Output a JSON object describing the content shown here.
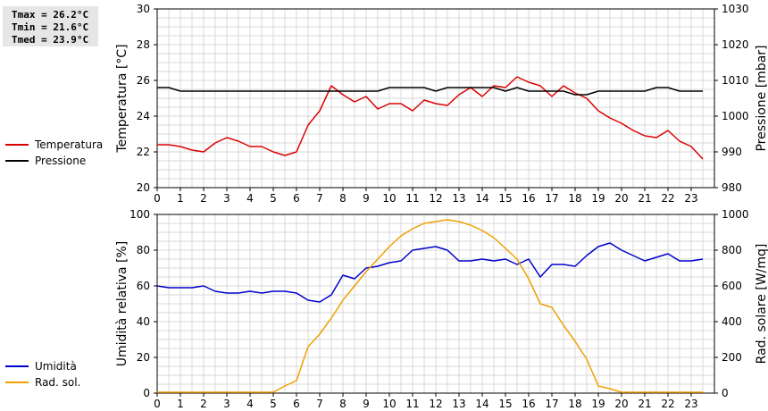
{
  "stats": {
    "tmax": "Tmax = 26.2°C",
    "tmin": "Tmin = 21.6°C",
    "tmed": "Tmed = 23.9°C"
  },
  "chart_data": [
    {
      "type": "line",
      "x_ticks": [
        "0",
        "1",
        "2",
        "3",
        "4",
        "5",
        "6",
        "7",
        "8",
        "9",
        "10",
        "11",
        "12",
        "13",
        "14",
        "15",
        "16",
        "17",
        "18",
        "19",
        "20",
        "21",
        "22",
        "23"
      ],
      "xlim": [
        0,
        24
      ],
      "ylabel": "Temperatura [°C]",
      "ylim": [
        20,
        30
      ],
      "y_ticks": [
        "20",
        "22",
        "24",
        "26",
        "28",
        "30"
      ],
      "y2label": "Pressione [mbar]",
      "y2lim": [
        980,
        1030
      ],
      "y2_ticks": [
        "980",
        "990",
        "1000",
        "1010",
        "1020",
        "1030"
      ],
      "grid": true,
      "legend_position": "left",
      "series": [
        {
          "name": "Temperatura",
          "color": "#dd0000",
          "axis": "left",
          "x": [
            0,
            0.5,
            1,
            1.5,
            2,
            2.5,
            3,
            3.5,
            4,
            4.5,
            5,
            5.5,
            6,
            6.5,
            7,
            7.5,
            8,
            8.5,
            9,
            9.5,
            10,
            10.5,
            11,
            11.5,
            12,
            12.5,
            13,
            13.5,
            14,
            14.5,
            15,
            15.5,
            16,
            16.5,
            17,
            17.5,
            18,
            18.5,
            19,
            19.5,
            20,
            20.5,
            21,
            21.5,
            22,
            22.5,
            23,
            23.5
          ],
          "values": [
            22.4,
            22.4,
            22.3,
            22.1,
            22.0,
            22.5,
            22.8,
            22.6,
            22.3,
            22.3,
            22.0,
            21.8,
            22.0,
            23.5,
            24.3,
            25.7,
            25.2,
            24.8,
            25.1,
            24.4,
            24.7,
            24.7,
            24.3,
            24.9,
            24.7,
            24.6,
            25.2,
            25.6,
            25.1,
            25.7,
            25.6,
            26.2,
            25.9,
            25.7,
            25.1,
            25.7,
            25.3,
            25.0,
            24.3,
            23.9,
            23.6,
            23.2,
            22.9,
            22.8,
            23.2,
            22.6,
            22.3,
            21.6
          ]
        },
        {
          "name": "Pressione",
          "color": "#000000",
          "axis": "right",
          "x": [
            0,
            0.5,
            1,
            1.5,
            2,
            2.5,
            3,
            3.5,
            4,
            4.5,
            5,
            5.5,
            6,
            6.5,
            7,
            7.5,
            8,
            8.5,
            9,
            9.5,
            10,
            10.5,
            11,
            11.5,
            12,
            12.5,
            13,
            13.5,
            14,
            14.5,
            15,
            15.5,
            16,
            16.5,
            17,
            17.5,
            18,
            18.5,
            19,
            19.5,
            20,
            20.5,
            21,
            21.5,
            22,
            22.5,
            23,
            23.5
          ],
          "values": [
            1008,
            1008,
            1007,
            1007,
            1007,
            1007,
            1007,
            1007,
            1007,
            1007,
            1007,
            1007,
            1007,
            1007,
            1007,
            1007,
            1007,
            1007,
            1007,
            1007,
            1008,
            1008,
            1008,
            1008,
            1007,
            1008,
            1008,
            1008,
            1008,
            1008,
            1007,
            1008,
            1007,
            1007,
            1007,
            1007,
            1006,
            1006,
            1007,
            1007,
            1007,
            1007,
            1007,
            1008,
            1008,
            1007,
            1007,
            1007
          ]
        }
      ]
    },
    {
      "type": "line",
      "x_ticks": [
        "0",
        "1",
        "2",
        "3",
        "4",
        "5",
        "6",
        "7",
        "8",
        "9",
        "10",
        "11",
        "12",
        "13",
        "14",
        "15",
        "16",
        "17",
        "18",
        "19",
        "20",
        "21",
        "22",
        "23"
      ],
      "xlim": [
        0,
        24
      ],
      "ylabel": "Umidità relativa [%]",
      "ylim": [
        0,
        100
      ],
      "y_ticks": [
        "0",
        "20",
        "40",
        "60",
        "80",
        "100"
      ],
      "y2label": "Rad. solare [W/mq]",
      "y2lim": [
        0,
        1000
      ],
      "y2_ticks": [
        "0",
        "200",
        "400",
        "600",
        "800",
        "1000"
      ],
      "grid": true,
      "legend_position": "left",
      "series": [
        {
          "name": "Umidità",
          "color": "#0000cc",
          "axis": "left",
          "x": [
            0,
            0.5,
            1,
            1.5,
            2,
            2.5,
            3,
            3.5,
            4,
            4.5,
            5,
            5.5,
            6,
            6.5,
            7,
            7.5,
            8,
            8.5,
            9,
            9.5,
            10,
            10.5,
            11,
            11.5,
            12,
            12.5,
            13,
            13.5,
            14,
            14.5,
            15,
            15.5,
            16,
            16.5,
            17,
            17.5,
            18,
            18.5,
            19,
            19.5,
            20,
            20.5,
            21,
            21.5,
            22,
            22.5,
            23,
            23.5
          ],
          "values": [
            60,
            59,
            59,
            59,
            60,
            57,
            56,
            56,
            57,
            56,
            57,
            57,
            56,
            52,
            51,
            55,
            66,
            64,
            70,
            71,
            73,
            74,
            80,
            81,
            82,
            80,
            74,
            74,
            75,
            74,
            75,
            72,
            75,
            65,
            72,
            72,
            71,
            77,
            82,
            84,
            80,
            77,
            74,
            76,
            78,
            74,
            74,
            75
          ]
        },
        {
          "name": "Rad. sol.",
          "color": "#f0a000",
          "axis": "right",
          "x": [
            0,
            0.5,
            1,
            1.5,
            2,
            2.5,
            3,
            3.5,
            4,
            4.5,
            5,
            5.5,
            6,
            6.5,
            7,
            7.5,
            8,
            8.5,
            9,
            9.5,
            10,
            10.5,
            11,
            11.5,
            12,
            12.5,
            13,
            13.5,
            14,
            14.5,
            15,
            15.5,
            16,
            16.5,
            17,
            17.5,
            18,
            18.5,
            19,
            19.5,
            20,
            20.5,
            21,
            21.5,
            22,
            22.5,
            23,
            23.5
          ],
          "values": [
            5,
            5,
            5,
            5,
            5,
            5,
            5,
            5,
            5,
            5,
            5,
            40,
            70,
            260,
            330,
            420,
            520,
            600,
            680,
            750,
            820,
            880,
            920,
            950,
            960,
            970,
            960,
            940,
            910,
            870,
            810,
            750,
            640,
            500,
            480,
            380,
            290,
            190,
            40,
            25,
            5,
            5,
            5,
            5,
            5,
            5,
            5,
            5
          ]
        }
      ]
    }
  ]
}
